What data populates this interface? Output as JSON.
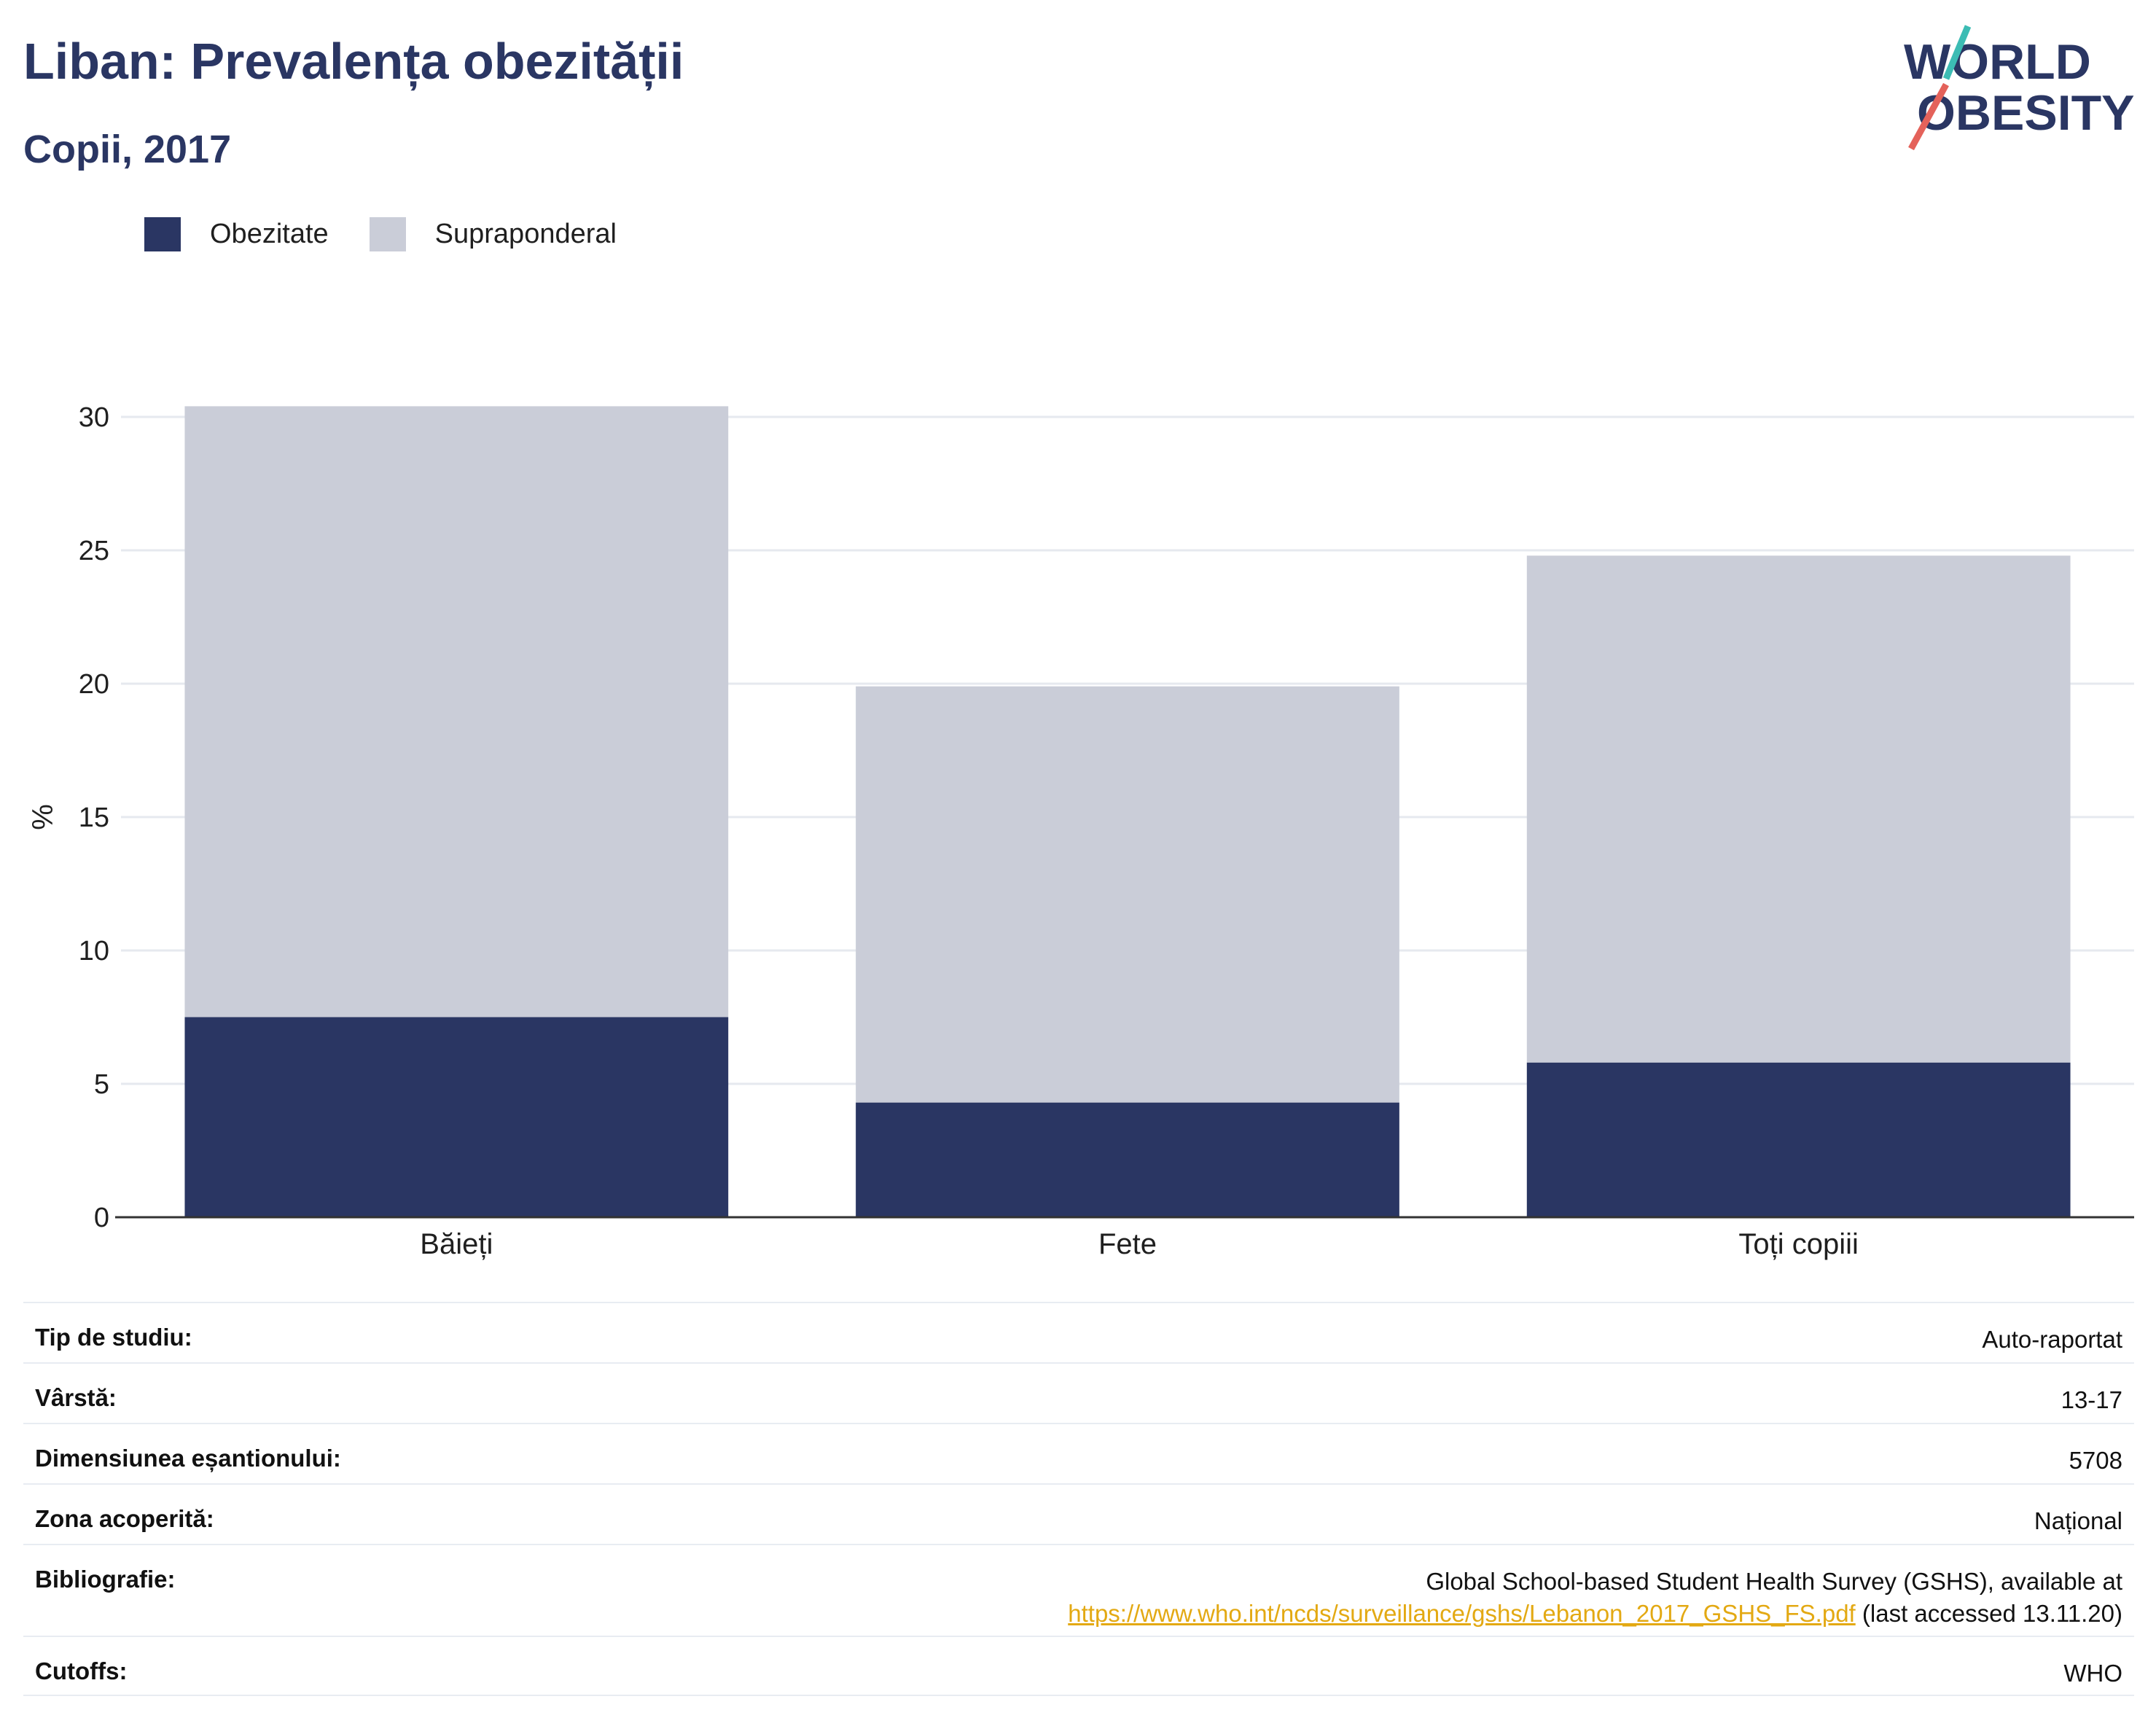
{
  "header": {
    "title": "Liban: Prevalența obezității",
    "subtitle": "Copii, 2017",
    "logo_line1": "WORLD",
    "logo_line2": "OBESITY"
  },
  "colors": {
    "obesity": "#2a3663",
    "overweight": "#cacdd8",
    "grid": "#e6e9ef",
    "link": "#e3a913",
    "logo_teal": "#3cbcb4",
    "logo_red": "#e4625a"
  },
  "chart_data": {
    "type": "bar",
    "stacked": true,
    "categories": [
      "Băieți",
      "Fete",
      "Toți copiii"
    ],
    "series": [
      {
        "name": "Obezitate",
        "values": [
          7.5,
          4.3,
          5.8
        ]
      },
      {
        "name": "Supraponderal",
        "values": [
          22.9,
          15.6,
          19.0
        ]
      }
    ],
    "totals": [
      30.4,
      19.9,
      24.8
    ],
    "ylabel": "%",
    "ylim": [
      0,
      30
    ],
    "yticks": [
      0,
      5,
      10,
      15,
      20,
      25,
      30
    ],
    "grid": true,
    "legend_position": "top-left"
  },
  "meta": [
    {
      "key": "Tip de studiu:",
      "value": "Auto-raportat"
    },
    {
      "key": "Vârstă:",
      "value": "13-17"
    },
    {
      "key": "Dimensiunea eșantionului:",
      "value": "5708"
    },
    {
      "key": "Zona acoperită:",
      "value": "Național"
    },
    {
      "key": "Bibliografie:",
      "value": "Global School-based Student Health Survey (GSHS), available at",
      "link": "https://www.who.int/ncds/surveillance/gshs/Lebanon_2017_GSHS_FS.pdf",
      "suffix": " (last accessed 13.11.20)"
    },
    {
      "key": "Cutoffs:",
      "value": "WHO"
    }
  ]
}
